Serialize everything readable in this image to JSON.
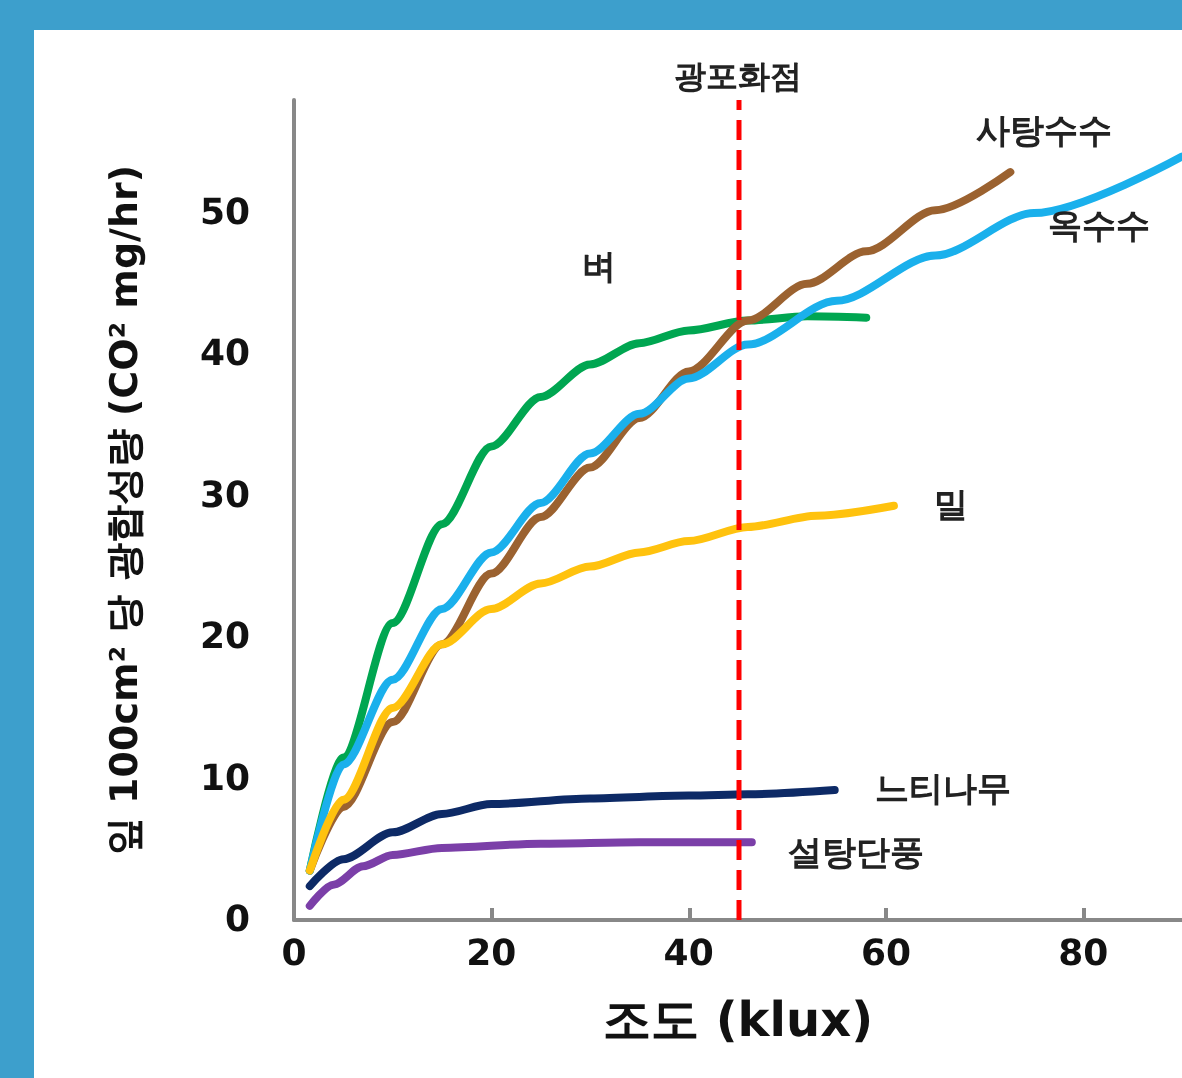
{
  "chart_data": {
    "type": "line",
    "xlabel": "조도 (klux)",
    "ylabel": "잎 100cm² 당 광합성량 (CO² mg/hr)",
    "xlim": [
      0,
      90
    ],
    "xticks": [
      0,
      20,
      40,
      60,
      80
    ],
    "ylim": [
      0,
      58
    ],
    "yticks": [
      0,
      10,
      20,
      30,
      40,
      50
    ],
    "grid": false,
    "legend": false,
    "marker": "none",
    "line_style": "solid",
    "ref_lines": [
      {
        "axis": "x",
        "value": 45,
        "label": "광포화점",
        "color": "#ff0000",
        "line_style": "dashed"
      }
    ],
    "series": [
      {
        "name": "벼",
        "color": "#00a651",
        "x": [
          1.6,
          5,
          10,
          15,
          20,
          25,
          30,
          35,
          40,
          46,
          52,
          58
        ],
        "values": [
          3.5,
          11.5,
          21,
          28,
          33.5,
          37,
          39.3,
          40.8,
          41.7,
          42.4,
          42.7,
          42.6
        ]
      },
      {
        "name": "사탕수수",
        "color": "#9b6230",
        "x": [
          1.6,
          5,
          10,
          15,
          20,
          25,
          30,
          35,
          40,
          46,
          52,
          58,
          65,
          72.6
        ],
        "values": [
          3.5,
          8,
          14,
          19.5,
          24.5,
          28.5,
          32,
          35.5,
          38.8,
          42.4,
          45,
          47.3,
          50.2,
          52.9
        ]
      },
      {
        "name": "옥수수",
        "color": "#1ab0ec",
        "x": [
          1.6,
          5,
          10,
          15,
          20,
          25,
          30,
          35,
          40,
          46,
          55,
          65,
          75,
          90
        ],
        "values": [
          3.5,
          11,
          17,
          22,
          26,
          29.5,
          33,
          35.8,
          38.3,
          40.7,
          43.8,
          47,
          50,
          54
        ]
      },
      {
        "name": "밀",
        "color": "#ffc20e",
        "x": [
          1.6,
          5,
          10,
          15,
          20,
          25,
          30,
          35,
          40,
          46,
          53,
          60.8
        ],
        "values": [
          3.5,
          8.5,
          15,
          19.5,
          22,
          23.8,
          25,
          26,
          26.8,
          27.8,
          28.6,
          29.3
        ]
      },
      {
        "name": "느티나무",
        "color": "#0d2a66",
        "x": [
          1.6,
          5,
          10,
          15,
          20,
          30,
          40,
          46,
          54.8
        ],
        "values": [
          2.4,
          4.3,
          6.2,
          7.5,
          8.2,
          8.6,
          8.8,
          8.9,
          9.2
        ]
      },
      {
        "name": "설탕단풍",
        "color": "#7b3fa8",
        "x": [
          1.6,
          4,
          7,
          10,
          15,
          25,
          35,
          46.4
        ],
        "values": [
          1.0,
          2.5,
          3.8,
          4.6,
          5.1,
          5.4,
          5.5,
          5.5
        ]
      }
    ]
  }
}
